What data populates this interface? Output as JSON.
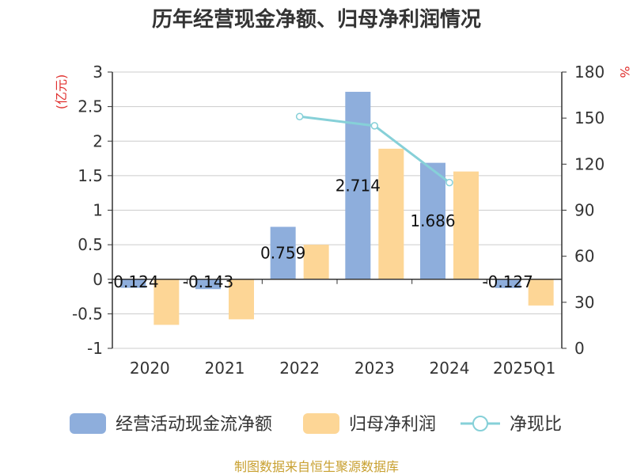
{
  "chart_data": {
    "type": "bar+line",
    "title": "历年经营现金净额、归母净利润情况",
    "categories": [
      "2020",
      "2021",
      "2022",
      "2023",
      "2024",
      "2025Q1"
    ],
    "series": [
      {
        "name": "经营活动现金流净额",
        "type": "bar",
        "axis": "left",
        "color": "#8eaedc",
        "values": [
          -0.124,
          -0.143,
          0.759,
          2.714,
          1.686,
          -0.127
        ],
        "labels": [
          "-0.124",
          "-0.143",
          "0.759",
          "2.714",
          "1.686",
          "-0.127"
        ]
      },
      {
        "name": "归母净利润",
        "type": "bar",
        "axis": "left",
        "color": "#fdd696",
        "values": [
          -0.66,
          -0.58,
          0.5,
          1.89,
          1.56,
          -0.38
        ]
      },
      {
        "name": "净现比",
        "type": "line",
        "axis": "right",
        "color": "#86d0d8",
        "values": [
          null,
          null,
          151,
          145,
          108,
          null
        ]
      }
    ],
    "left_axis": {
      "unit": "(亿元)",
      "ylim": [
        -1,
        3
      ],
      "ticks": [
        -1,
        -0.5,
        0,
        0.5,
        1,
        1.5,
        2,
        2.5,
        3
      ],
      "tick_labels": [
        "-1",
        "-0.5",
        "0",
        "0.5",
        "1",
        "1.5",
        "2",
        "2.5",
        "3"
      ]
    },
    "right_axis": {
      "unit": "%",
      "ylim": [
        0,
        180
      ],
      "ticks": [
        0,
        30,
        60,
        90,
        120,
        150,
        180
      ],
      "tick_labels": [
        "0",
        "30",
        "60",
        "90",
        "120",
        "150",
        "180"
      ]
    },
    "grid": true,
    "legend_position": "bottom",
    "source": "制图数据来自恒生聚源数据库"
  }
}
